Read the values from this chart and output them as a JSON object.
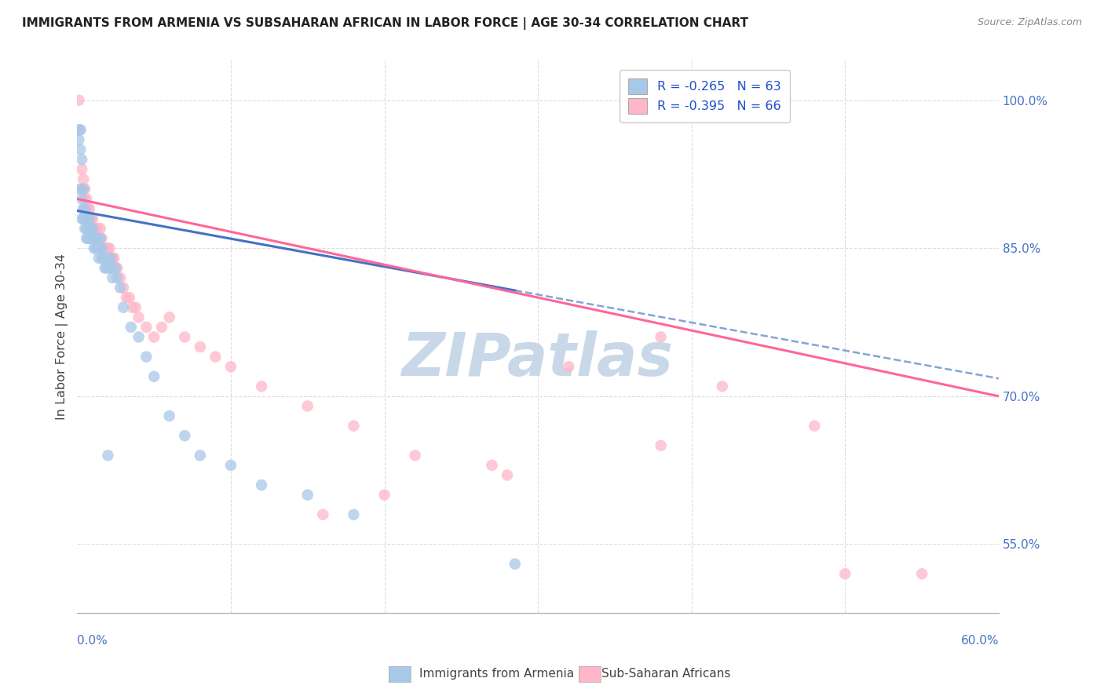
{
  "title": "IMMIGRANTS FROM ARMENIA VS SUBSAHARAN AFRICAN IN LABOR FORCE | AGE 30-34 CORRELATION CHART",
  "source": "Source: ZipAtlas.com",
  "ylabel": "In Labor Force | Age 30-34",
  "right_yticks": [
    55.0,
    70.0,
    85.0,
    100.0
  ],
  "legend_armenia": "R = -0.265   N = 63",
  "legend_subsaharan": "R = -0.395   N = 66",
  "legend_label_armenia": "Immigrants from Armenia",
  "legend_label_subsaharan": "Sub-Saharan Africans",
  "color_armenia": "#a8c8e8",
  "color_subsaharan": "#ffb6c8",
  "color_armenia_line": "#4472c4",
  "color_subsaharan_line": "#ff6699",
  "color_text_blue": "#1f4fc8",
  "xlim": [
    0.0,
    0.6
  ],
  "ylim": [
    0.48,
    1.04
  ],
  "armenia_line_x0": 0.0,
  "armenia_line_y0": 0.888,
  "armenia_line_x1": 0.6,
  "armenia_line_y1": 0.718,
  "armenia_line_solid_end": 0.285,
  "subsaharan_line_x0": 0.0,
  "subsaharan_line_y0": 0.9,
  "subsaharan_line_x1": 0.6,
  "subsaharan_line_y1": 0.7,
  "armenia_scatter_x": [
    0.001,
    0.001,
    0.002,
    0.002,
    0.002,
    0.003,
    0.003,
    0.003,
    0.004,
    0.004,
    0.004,
    0.005,
    0.005,
    0.005,
    0.006,
    0.006,
    0.006,
    0.007,
    0.007,
    0.008,
    0.008,
    0.008,
    0.009,
    0.009,
    0.01,
    0.01,
    0.011,
    0.011,
    0.012,
    0.012,
    0.013,
    0.013,
    0.014,
    0.014,
    0.015,
    0.015,
    0.016,
    0.016,
    0.017,
    0.018,
    0.019,
    0.02,
    0.021,
    0.022,
    0.022,
    0.023,
    0.025,
    0.026,
    0.028,
    0.03,
    0.035,
    0.04,
    0.045,
    0.05,
    0.06,
    0.07,
    0.08,
    0.1,
    0.12,
    0.15,
    0.18,
    0.285,
    0.02
  ],
  "armenia_scatter_y": [
    0.97,
    0.96,
    0.97,
    0.95,
    0.91,
    0.94,
    0.9,
    0.88,
    0.89,
    0.91,
    0.88,
    0.89,
    0.88,
    0.87,
    0.88,
    0.87,
    0.86,
    0.87,
    0.86,
    0.87,
    0.86,
    0.88,
    0.86,
    0.87,
    0.86,
    0.87,
    0.86,
    0.85,
    0.85,
    0.86,
    0.85,
    0.86,
    0.85,
    0.84,
    0.85,
    0.86,
    0.85,
    0.84,
    0.84,
    0.83,
    0.83,
    0.84,
    0.83,
    0.83,
    0.84,
    0.82,
    0.83,
    0.82,
    0.81,
    0.79,
    0.77,
    0.76,
    0.74,
    0.72,
    0.68,
    0.66,
    0.64,
    0.63,
    0.61,
    0.6,
    0.58,
    0.53,
    0.64
  ],
  "subsaharan_scatter_x": [
    0.001,
    0.002,
    0.003,
    0.003,
    0.004,
    0.004,
    0.005,
    0.005,
    0.006,
    0.006,
    0.007,
    0.007,
    0.008,
    0.008,
    0.009,
    0.009,
    0.01,
    0.01,
    0.011,
    0.012,
    0.012,
    0.013,
    0.014,
    0.015,
    0.015,
    0.016,
    0.017,
    0.018,
    0.019,
    0.02,
    0.021,
    0.022,
    0.023,
    0.024,
    0.025,
    0.026,
    0.028,
    0.03,
    0.032,
    0.034,
    0.036,
    0.038,
    0.04,
    0.045,
    0.05,
    0.055,
    0.06,
    0.07,
    0.08,
    0.09,
    0.1,
    0.12,
    0.15,
    0.18,
    0.22,
    0.27,
    0.32,
    0.38,
    0.42,
    0.48,
    0.38,
    0.28,
    0.2,
    0.16,
    0.5,
    0.55
  ],
  "subsaharan_scatter_y": [
    1.0,
    0.97,
    0.93,
    0.91,
    0.91,
    0.92,
    0.9,
    0.91,
    0.89,
    0.9,
    0.89,
    0.88,
    0.89,
    0.88,
    0.88,
    0.87,
    0.87,
    0.88,
    0.87,
    0.87,
    0.86,
    0.87,
    0.86,
    0.86,
    0.87,
    0.86,
    0.85,
    0.85,
    0.85,
    0.85,
    0.85,
    0.84,
    0.84,
    0.84,
    0.83,
    0.83,
    0.82,
    0.81,
    0.8,
    0.8,
    0.79,
    0.79,
    0.78,
    0.77,
    0.76,
    0.77,
    0.78,
    0.76,
    0.75,
    0.74,
    0.73,
    0.71,
    0.69,
    0.67,
    0.64,
    0.63,
    0.73,
    0.76,
    0.71,
    0.67,
    0.65,
    0.62,
    0.6,
    0.58,
    0.52,
    0.52
  ],
  "background_color": "#ffffff",
  "grid_color": "#dddddd",
  "watermark_text": "ZIPatlas",
  "watermark_color": "#c8d8e8"
}
